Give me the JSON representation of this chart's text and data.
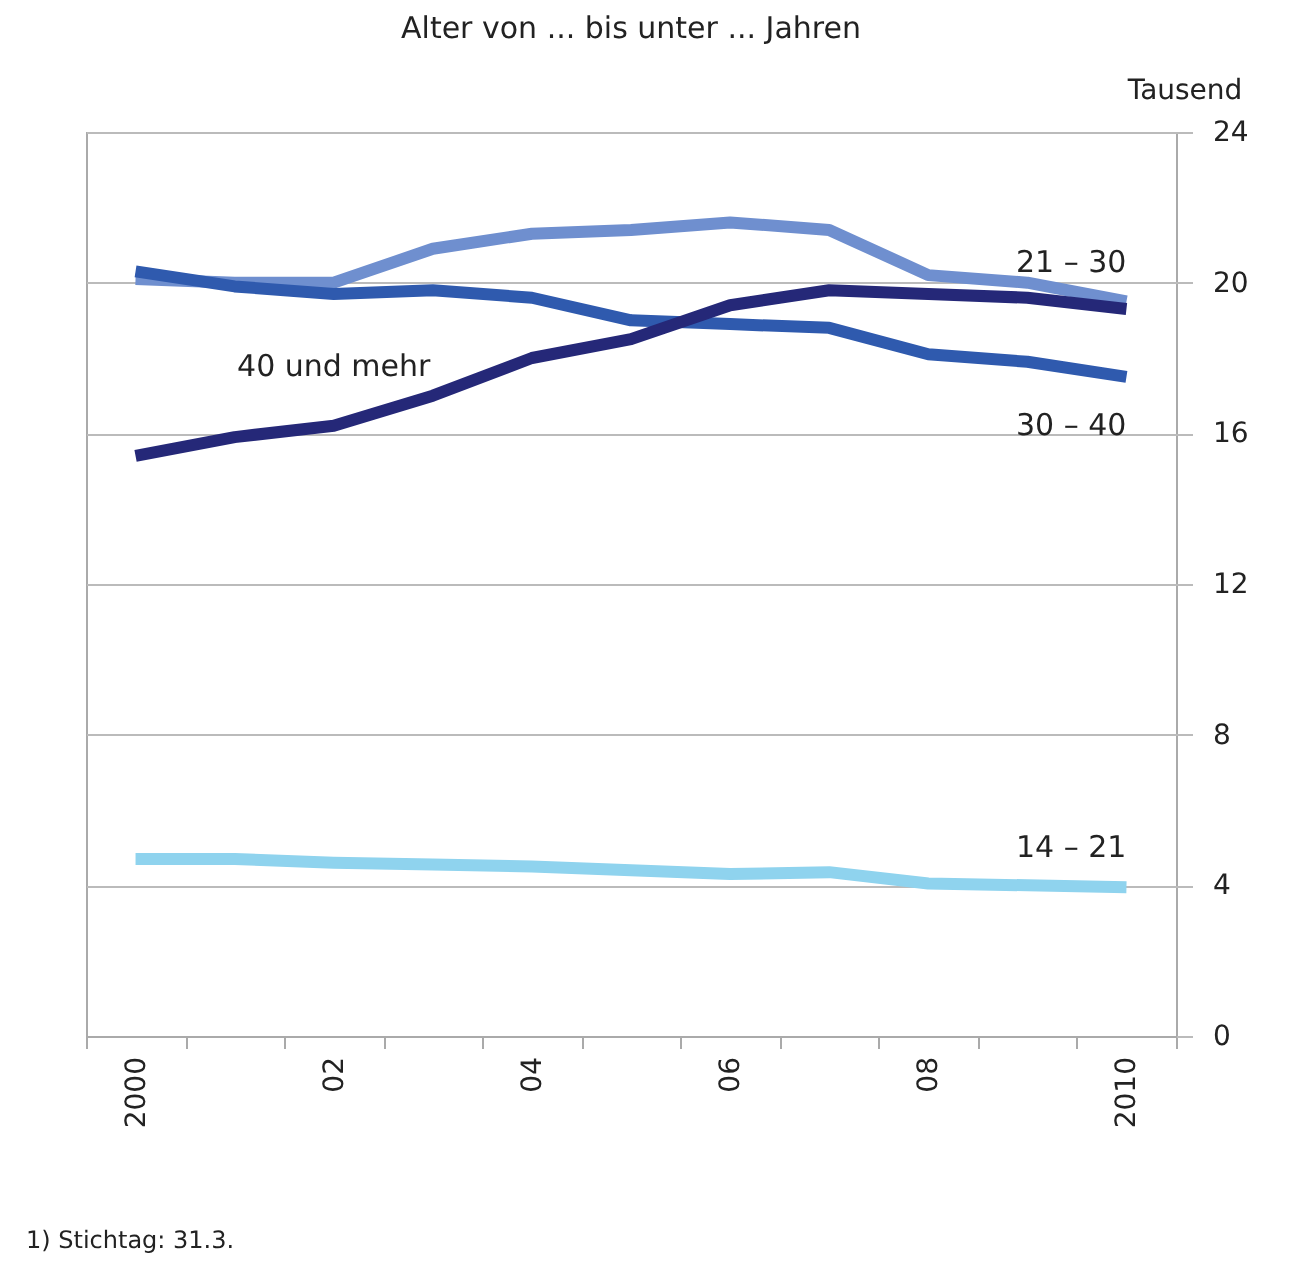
{
  "chart_data": {
    "type": "line",
    "title": "Alter von ... bis unter ... Jahren",
    "ylabel": "Tausend",
    "categories": [
      "2000",
      null,
      "02",
      null,
      "04",
      null,
      "06",
      null,
      "08",
      null,
      "2010"
    ],
    "series": [
      {
        "name": "14 – 21",
        "color": "#8fd3ee",
        "values": [
          4.7,
          4.7,
          4.6,
          4.55,
          4.5,
          4.4,
          4.3,
          4.35,
          4.05,
          4.0,
          3.95
        ]
      },
      {
        "name": "21 – 30",
        "color": "#6f8fcf",
        "values": [
          20.1,
          20.0,
          20.0,
          20.9,
          21.3,
          21.4,
          21.6,
          21.4,
          20.2,
          20.0,
          19.5
        ]
      },
      {
        "name": "30 – 40",
        "color": "#2f5aae",
        "values": [
          20.3,
          19.9,
          19.7,
          19.8,
          19.6,
          19.0,
          18.9,
          18.8,
          18.1,
          17.9,
          17.5
        ]
      },
      {
        "name": "40 und mehr",
        "color": "#252878",
        "values": [
          15.4,
          15.9,
          16.2,
          17.0,
          18.0,
          18.5,
          19.4,
          19.8,
          19.7,
          19.6,
          19.3
        ]
      }
    ],
    "ylim": [
      0,
      24
    ],
    "yticks": [
      0,
      4,
      8,
      12,
      16,
      20,
      24
    ],
    "grid": "y",
    "marker": "none",
    "line_style": "solid",
    "legend": false,
    "annotations": [
      "1) Stichtag: 31.3."
    ]
  }
}
